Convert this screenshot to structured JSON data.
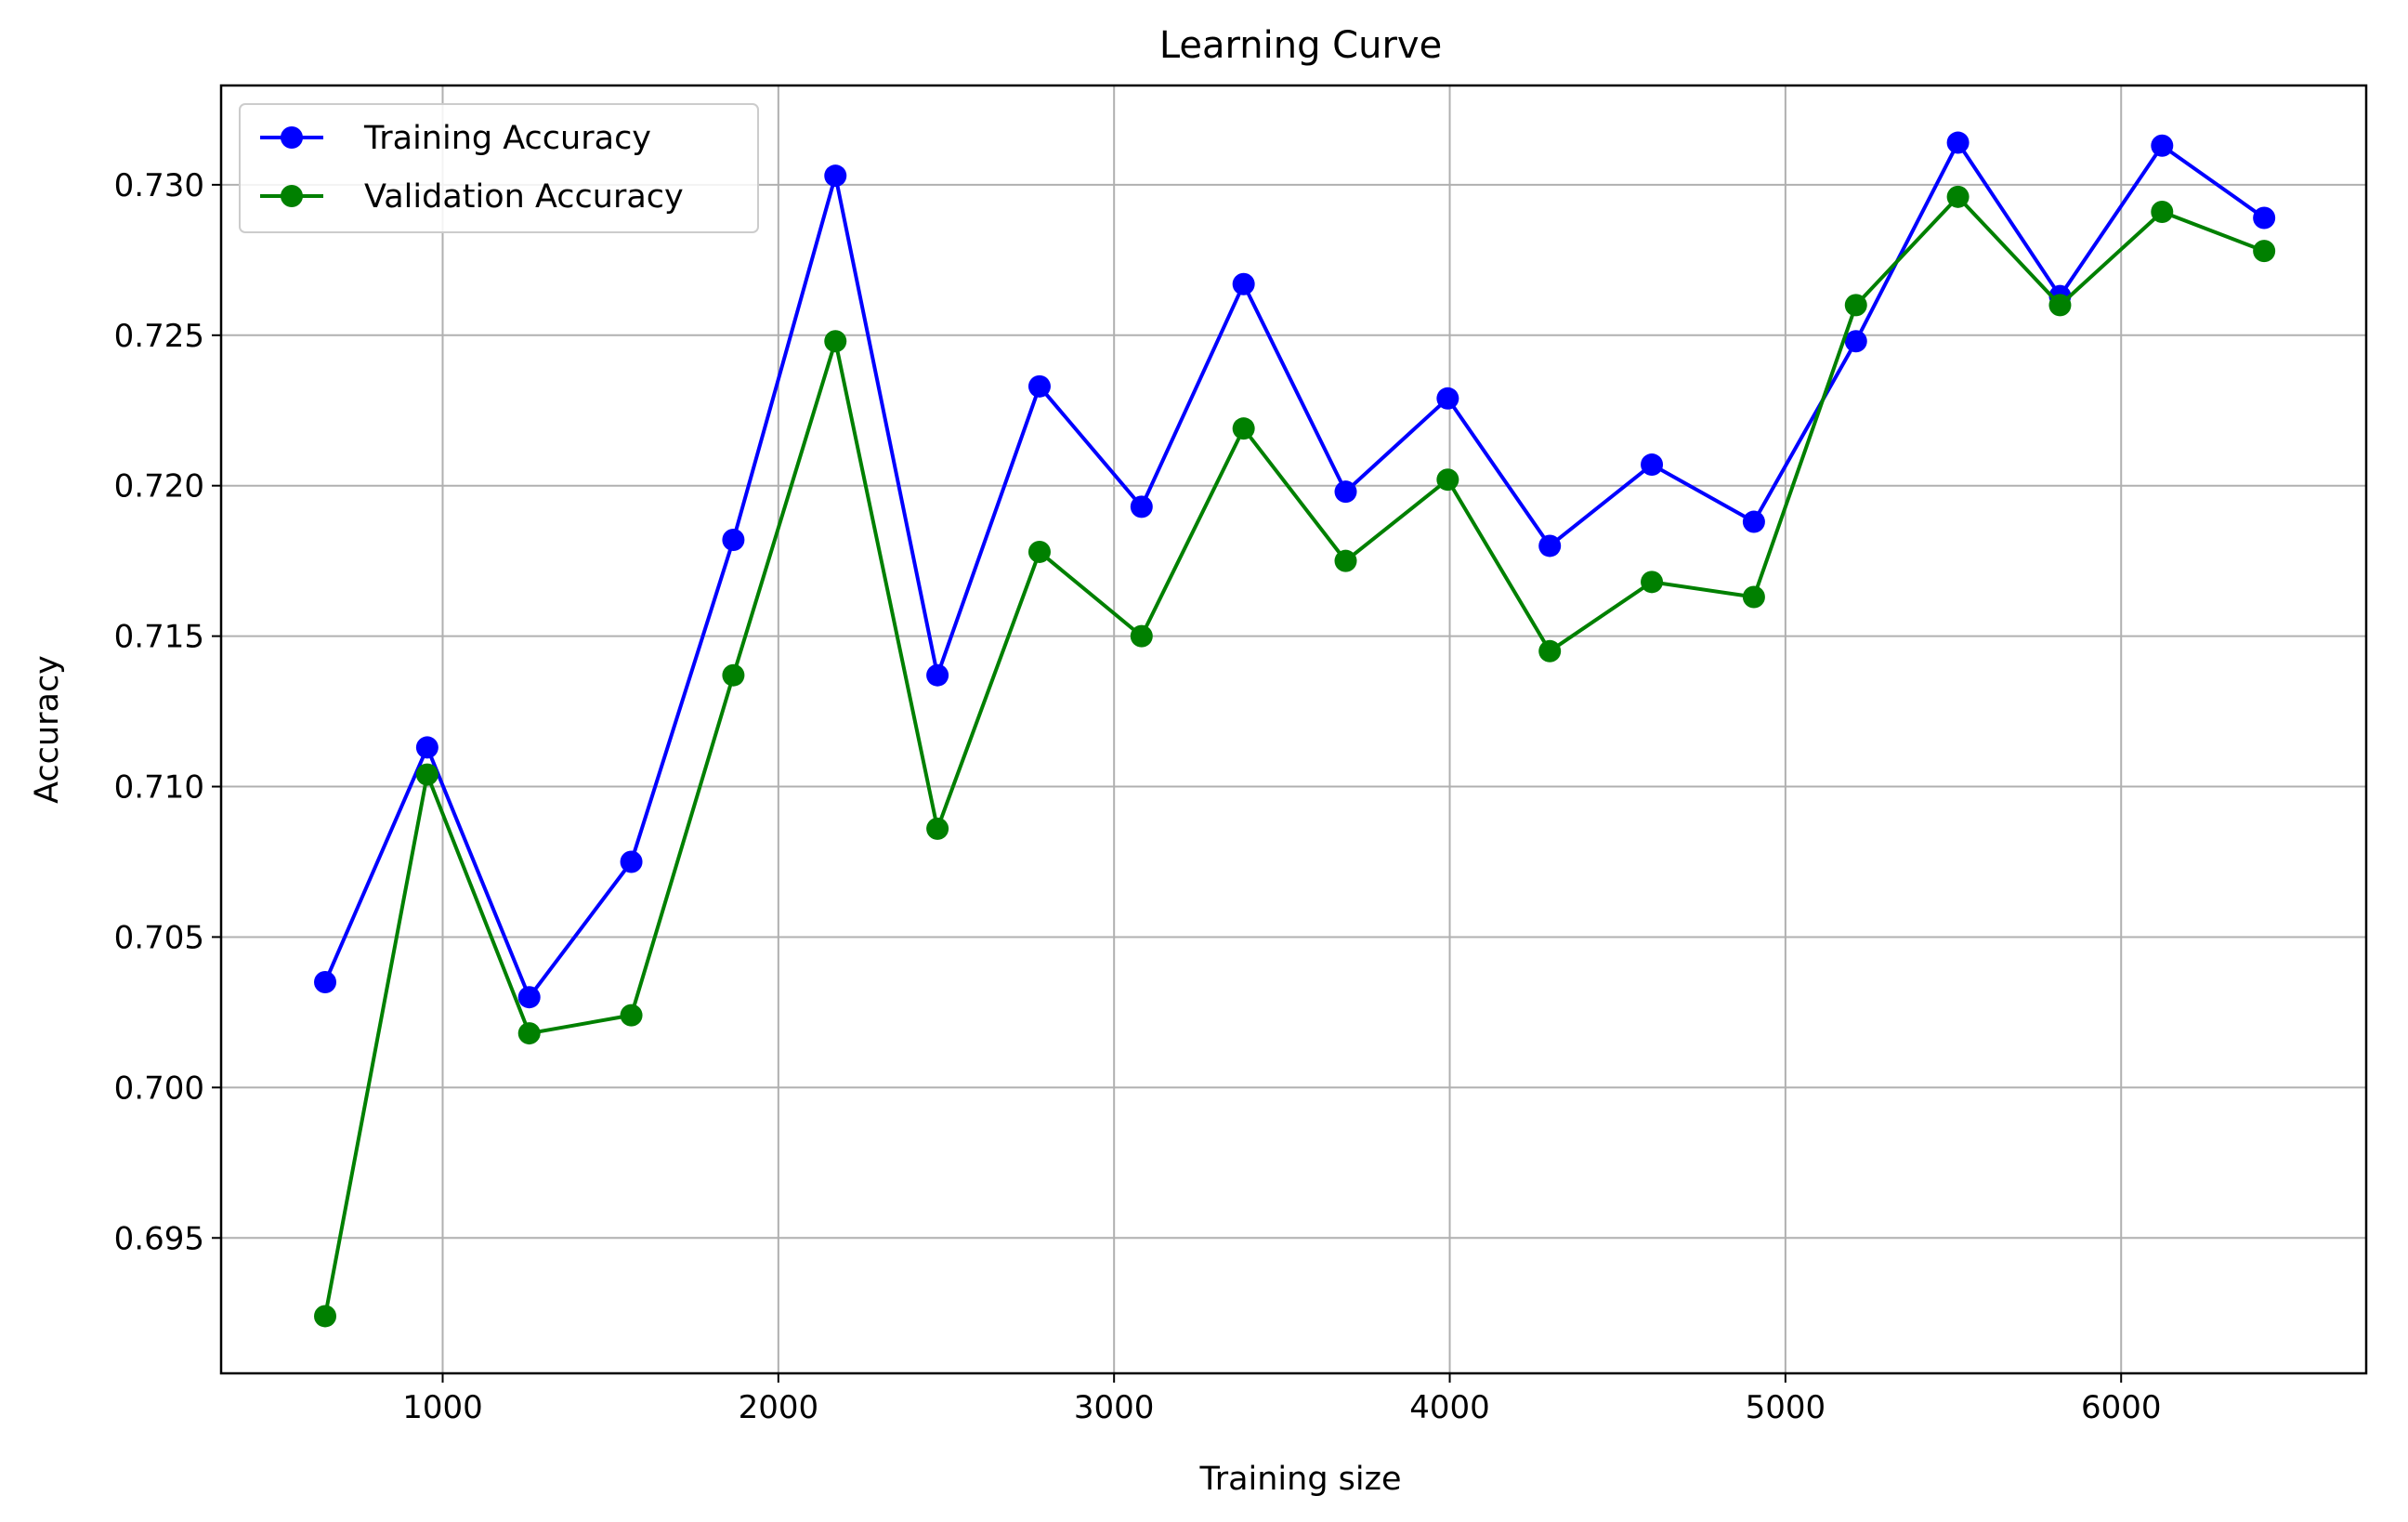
{
  "chart_data": {
    "type": "line",
    "title": "Learning Curve",
    "xlabel": "Training size",
    "ylabel": "Accuracy",
    "xlim": [
      340,
      6730
    ],
    "ylim": [
      0.6905,
      0.7333
    ],
    "xticks": [
      1000,
      2000,
      3000,
      4000,
      5000,
      6000
    ],
    "xtick_labels": [
      "1000",
      "2000",
      "3000",
      "4000",
      "5000",
      "6000"
    ],
    "yticks": [
      0.695,
      0.7,
      0.705,
      0.71,
      0.715,
      0.72,
      0.725,
      0.73
    ],
    "ytick_labels": [
      "0.695",
      "0.700",
      "0.705",
      "0.710",
      "0.715",
      "0.720",
      "0.725",
      "0.730"
    ],
    "grid": true,
    "legend_position": "upper-left",
    "x": [
      650,
      954,
      1258,
      1562,
      1866,
      2170,
      2474,
      2778,
      3082,
      3386,
      3690,
      3994,
      4298,
      4602,
      4906,
      5210,
      5514,
      5818,
      6122,
      6426
    ],
    "series": [
      {
        "name": "Training Accuracy",
        "color": "#0000ff",
        "values": [
          0.7035,
          0.7113,
          0.703,
          0.7075,
          0.7182,
          0.7303,
          0.7137,
          0.7233,
          0.7193,
          0.7267,
          0.7198,
          0.7229,
          0.718,
          0.7207,
          0.7188,
          0.7248,
          0.7314,
          0.7263,
          0.7313,
          0.7289
        ]
      },
      {
        "name": "Validation Accuracy",
        "color": "#008000",
        "values": [
          0.6924,
          0.7104,
          0.7018,
          0.7024,
          0.7137,
          0.7248,
          0.7086,
          0.7178,
          0.715,
          0.7219,
          0.7175,
          0.7202,
          0.7145,
          0.7168,
          0.7163,
          0.726,
          0.7296,
          0.726,
          0.7291,
          0.7278
        ]
      }
    ]
  }
}
